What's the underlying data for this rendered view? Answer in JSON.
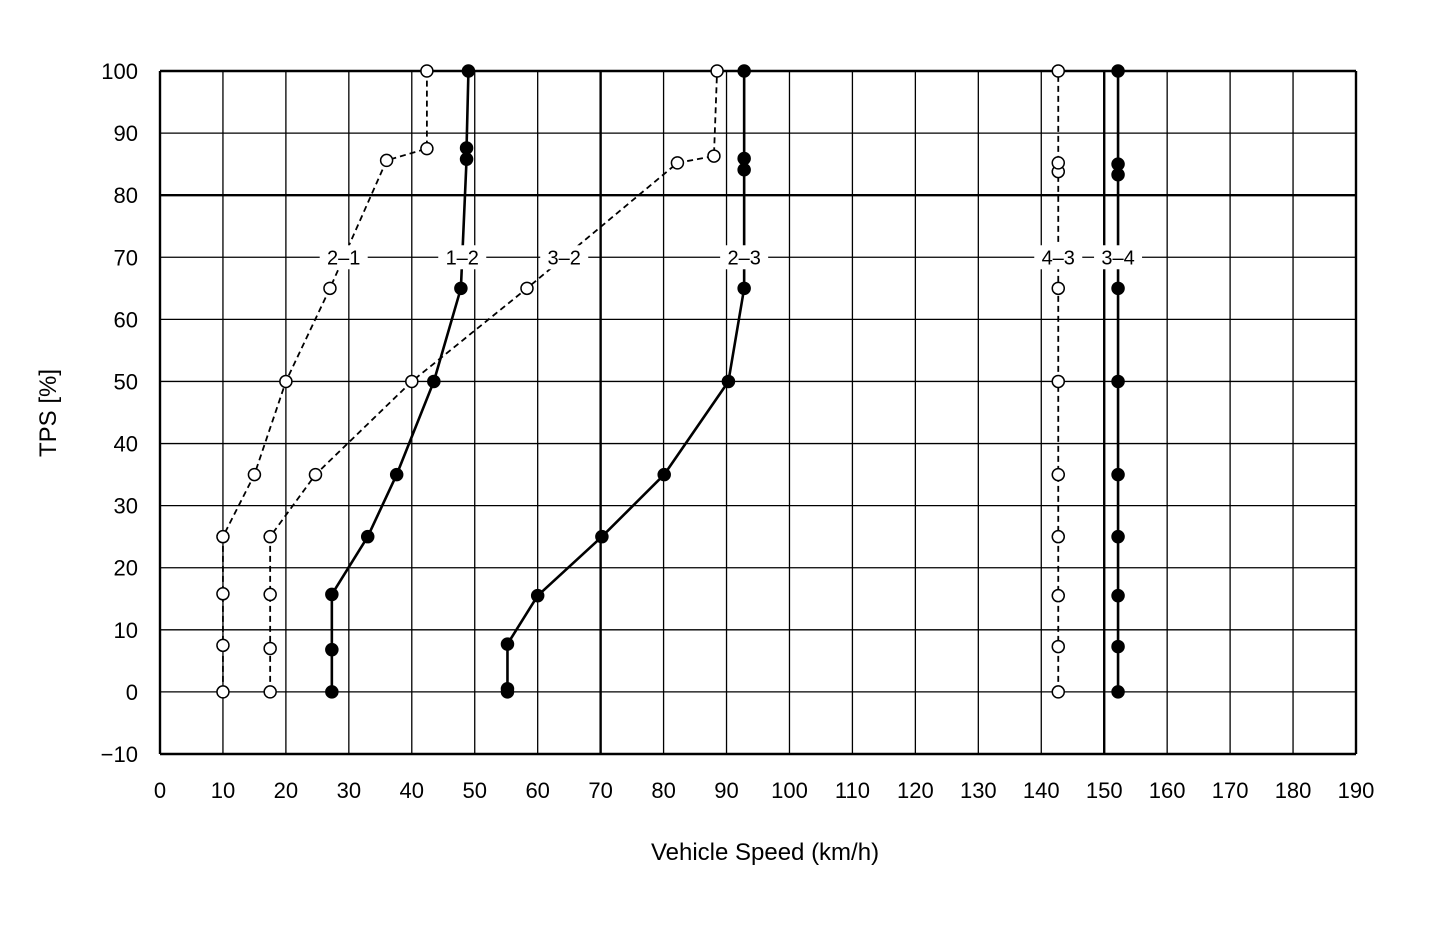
{
  "chart_data": {
    "type": "line",
    "xlabel": "Vehicle Speed (km/h)",
    "ylabel": "TPS [%]",
    "xlim": [
      0,
      190
    ],
    "ylim": [
      -10,
      100
    ],
    "xticks": [
      0,
      10,
      20,
      30,
      40,
      50,
      60,
      70,
      80,
      90,
      100,
      110,
      120,
      130,
      140,
      150,
      160,
      170,
      180,
      190
    ],
    "yticks": [
      -10,
      0,
      10,
      20,
      30,
      40,
      50,
      60,
      70,
      80,
      90,
      100
    ],
    "xtick_labels": [
      "0",
      "10",
      "20",
      "30",
      "40",
      "50",
      "60",
      "70",
      "80",
      "90",
      "100",
      "110",
      "120",
      "130",
      "140",
      "150",
      "160",
      "170",
      "180",
      "190"
    ],
    "ytick_labels": [
      "−10",
      "0",
      "10",
      "20",
      "30",
      "40",
      "50",
      "60",
      "70",
      "80",
      "90",
      "100"
    ],
    "grid": true,
    "series": [
      {
        "name": "2–1",
        "style": "dashed",
        "marker": "open",
        "points": [
          [
            10,
            0
          ],
          [
            10,
            7.5
          ],
          [
            10,
            15.8
          ],
          [
            10,
            25
          ],
          [
            15,
            35
          ],
          [
            20,
            50
          ],
          [
            27,
            65
          ],
          [
            36,
            85.6
          ],
          [
            42.4,
            87.5
          ],
          [
            42.4,
            100
          ]
        ]
      },
      {
        "name": "1–2",
        "style": "solid",
        "marker": "filled",
        "points": [
          [
            27.3,
            0
          ],
          [
            27.3,
            6.8
          ],
          [
            27.3,
            15.7
          ],
          [
            33,
            25
          ],
          [
            37.6,
            35
          ],
          [
            43.5,
            50
          ],
          [
            47.8,
            65
          ],
          [
            48.7,
            85.8
          ],
          [
            48.7,
            87.6
          ],
          [
            49,
            100
          ]
        ]
      },
      {
        "name": "3–2",
        "style": "dashed",
        "marker": "open",
        "points": [
          [
            17.5,
            0
          ],
          [
            17.5,
            7
          ],
          [
            17.5,
            15.7
          ],
          [
            17.5,
            25
          ],
          [
            24.7,
            35
          ],
          [
            40,
            50
          ],
          [
            58.3,
            65
          ],
          [
            82.2,
            85.2
          ],
          [
            88,
            86.3
          ],
          [
            88.5,
            100
          ]
        ]
      },
      {
        "name": "2–3",
        "style": "solid",
        "marker": "filled",
        "points": [
          [
            55.2,
            0
          ],
          [
            55.2,
            0.5
          ],
          [
            55.2,
            7.7
          ],
          [
            60,
            15.5
          ],
          [
            70.2,
            25
          ],
          [
            80.1,
            35
          ],
          [
            90.3,
            50
          ],
          [
            92.8,
            65
          ],
          [
            92.8,
            84.1
          ],
          [
            92.8,
            85.9
          ],
          [
            92.8,
            100
          ]
        ]
      },
      {
        "name": "4–3",
        "style": "dashed",
        "marker": "open",
        "points": [
          [
            142.7,
            0
          ],
          [
            142.7,
            7.3
          ],
          [
            142.7,
            15.5
          ],
          [
            142.7,
            25
          ],
          [
            142.7,
            35
          ],
          [
            142.7,
            50
          ],
          [
            142.7,
            65
          ],
          [
            142.7,
            83.8
          ],
          [
            142.7,
            85.2
          ],
          [
            142.7,
            100
          ]
        ]
      },
      {
        "name": "3–4",
        "style": "solid",
        "marker": "filled",
        "points": [
          [
            152.2,
            0
          ],
          [
            152.2,
            7.3
          ],
          [
            152.2,
            15.5
          ],
          [
            152.2,
            25
          ],
          [
            152.2,
            35
          ],
          [
            152.2,
            50
          ],
          [
            152.2,
            65
          ],
          [
            152.2,
            83.3
          ],
          [
            152.2,
            85
          ],
          [
            152.2,
            100
          ]
        ]
      }
    ]
  }
}
